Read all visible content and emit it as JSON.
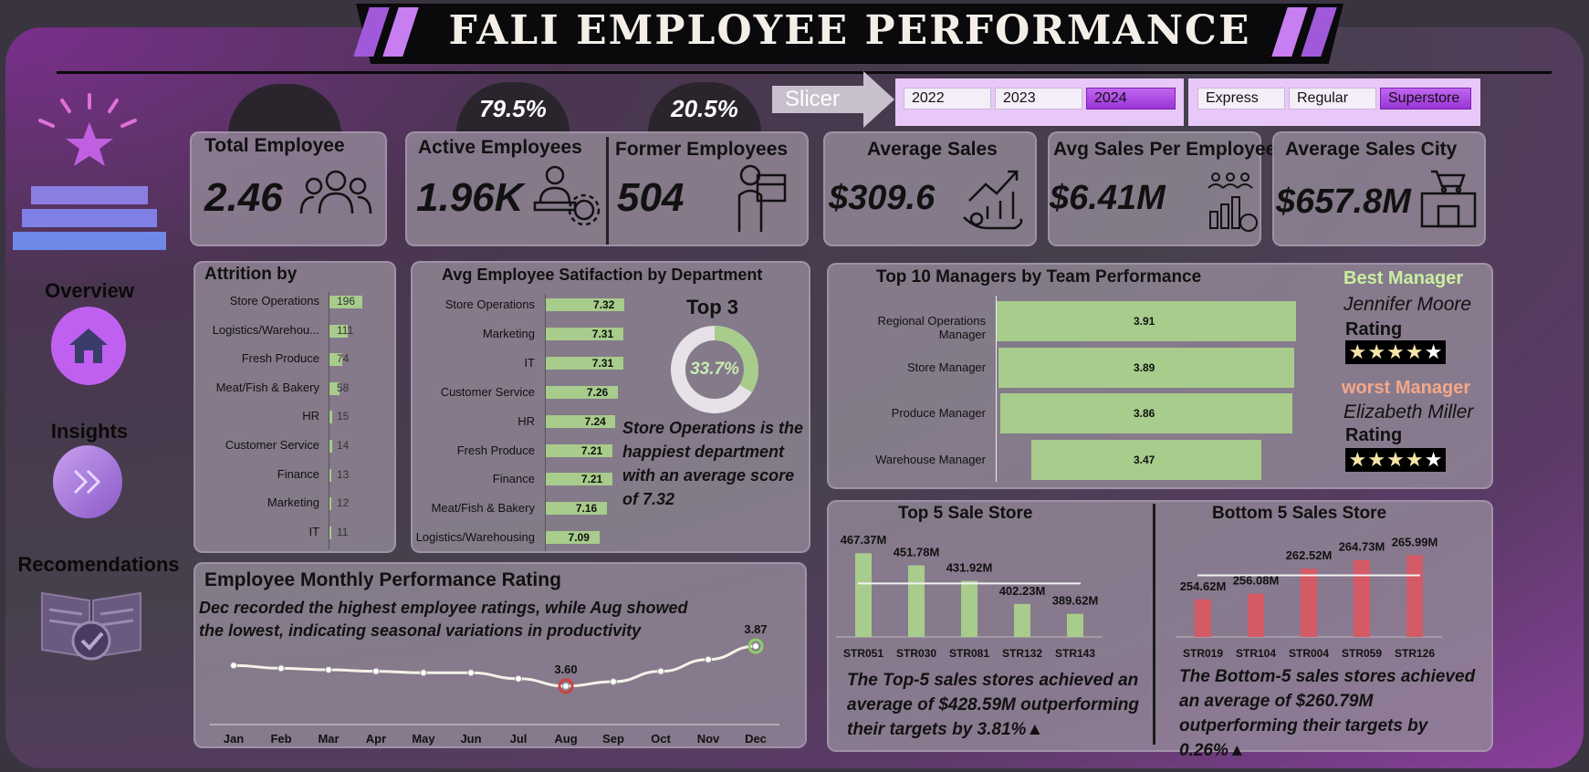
{
  "title": "FALI EMPLOYEE PERFORMANCE",
  "nav": {
    "overview": "Overview",
    "insights": "Insights",
    "recommendations": "Recomendations"
  },
  "slicer": {
    "label": "Slicer",
    "years": [
      {
        "label": "2022",
        "selected": false
      },
      {
        "label": "2023",
        "selected": false
      },
      {
        "label": "2024",
        "selected": true
      }
    ],
    "store_types": [
      {
        "label": "Express",
        "selected": false
      },
      {
        "label": "Regular",
        "selected": false
      },
      {
        "label": "Superstore",
        "selected": true
      }
    ]
  },
  "kpis": {
    "total_employee": {
      "label": "Total Employee",
      "value": "2.46"
    },
    "active_employees": {
      "label": "Active Employees",
      "value": "1.96K",
      "pct": "79.5%"
    },
    "former_employees": {
      "label": "Former Employees",
      "value": "504",
      "pct": "20.5%"
    },
    "average_sales": {
      "label": "Average Sales",
      "value": "$309.6"
    },
    "avg_sales_per_employee": {
      "label": "Avg Sales Per Employee",
      "value": "$6.41M"
    },
    "average_sales_city": {
      "label": "Average Sales City",
      "value": "$657.8M"
    }
  },
  "attrition": {
    "title": "Attrition by",
    "items": [
      {
        "label": "Store Operations",
        "value": "196"
      },
      {
        "label": "Logistics/Warehou...",
        "value": "111"
      },
      {
        "label": "Fresh Produce",
        "value": "74"
      },
      {
        "label": "Meat/Fish & Bakery",
        "value": "58"
      },
      {
        "label": "HR",
        "value": "15"
      },
      {
        "label": "Customer Service",
        "value": "14"
      },
      {
        "label": "Finance",
        "value": "13"
      },
      {
        "label": "Marketing",
        "value": "12"
      },
      {
        "label": "IT",
        "value": "11"
      }
    ]
  },
  "satisfaction": {
    "title": "Avg Employee Satifaction by Department",
    "items": [
      {
        "label": "Store Operations",
        "value": "7.32"
      },
      {
        "label": "Marketing",
        "value": "7.31"
      },
      {
        "label": "IT",
        "value": "7.31"
      },
      {
        "label": "Customer Service",
        "value": "7.26"
      },
      {
        "label": "HR",
        "value": "7.24"
      },
      {
        "label": "Fresh Produce",
        "value": "7.21"
      },
      {
        "label": "Finance",
        "value": "7.21"
      },
      {
        "label": "Meat/Fish & Bakery",
        "value": "7.16"
      },
      {
        "label": "Logistics/Warehousing",
        "value": "7.09"
      }
    ],
    "top3_label": "Top 3",
    "donut_value": "33.7%",
    "donut_fraction": 0.337,
    "note": "Store Operations is the happiest department with an average score of 7.32"
  },
  "managers": {
    "title": "Top 10 Managers by Team Performance",
    "items": [
      {
        "label": "Regional Operations Manager",
        "value": "3.91"
      },
      {
        "label": "Store Manager",
        "value": "3.89"
      },
      {
        "label": "Produce Manager",
        "value": "3.86"
      },
      {
        "label": "Warehouse Manager",
        "value": "3.47"
      }
    ],
    "best_label": "Best Manager",
    "best_name": "Jennifer Moore",
    "best_rating_label": "Rating",
    "worst_label": "worst Manager",
    "worst_name": "Elizabeth Miller",
    "worst_rating_label": "Rating",
    "best_stars": 5,
    "worst_stars": 5
  },
  "monthly": {
    "title": "Employee Monthly Performance Rating",
    "note": "Dec recorded the highest employee ratings, while Aug showed the lowest, indicating seasonal variations in productivity",
    "months": [
      "Jan",
      "Feb",
      "Mar",
      "Apr",
      "May",
      "Jun",
      "Jul",
      "Aug",
      "Sep",
      "Oct",
      "Nov",
      "Dec"
    ],
    "values": [
      3.74,
      3.72,
      3.71,
      3.7,
      3.69,
      3.69,
      3.65,
      3.6,
      3.63,
      3.7,
      3.78,
      3.87
    ],
    "min_label": "3.60",
    "max_label": "3.87"
  },
  "top5": {
    "title": "Top 5 Sale Store",
    "stores": [
      "STR051",
      "STR030",
      "STR081",
      "STR132",
      "STR143"
    ],
    "values": [
      467.37,
      451.78,
      431.92,
      402.23,
      389.62
    ],
    "labels": [
      "467.37M",
      "451.78M",
      "431.92M",
      "402.23M",
      "389.62M"
    ],
    "average": 428.59,
    "note": "The Top-5 sales stores achieved an average of $428.59M outperforming their targets by 3.81%▲"
  },
  "bottom5": {
    "title": "Bottom 5 Sales Store",
    "stores": [
      "STR019",
      "STR104",
      "STR004",
      "STR059",
      "STR126"
    ],
    "values": [
      254.62,
      256.08,
      262.52,
      264.73,
      265.99
    ],
    "labels": [
      "254.62M",
      "256.08M",
      "262.52M",
      "264.73M",
      "265.99M"
    ],
    "average": 260.79,
    "note": "The Bottom-5 sales stores achieved an average of $260.79M outperforming their targets by 0.26%▲"
  },
  "chart_data": [
    {
      "type": "bar",
      "title": "Attrition by",
      "categories": [
        "Store Operations",
        "Logistics/Warehou...",
        "Fresh Produce",
        "Meat/Fish & Bakery",
        "HR",
        "Customer Service",
        "Finance",
        "Marketing",
        "IT"
      ],
      "values": [
        196,
        111,
        74,
        58,
        15,
        14,
        13,
        12,
        11
      ]
    },
    {
      "type": "bar",
      "title": "Avg Employee Satifaction by Department",
      "categories": [
        "Store Operations",
        "Marketing",
        "IT",
        "Customer Service",
        "HR",
        "Fresh Produce",
        "Finance",
        "Meat/Fish & Bakery",
        "Logistics/Warehousing"
      ],
      "values": [
        7.32,
        7.31,
        7.31,
        7.26,
        7.24,
        7.21,
        7.21,
        7.16,
        7.09
      ]
    },
    {
      "type": "pie",
      "title": "Top 3",
      "values": [
        33.7,
        66.3
      ]
    },
    {
      "type": "bar",
      "title": "Top 10 Managers by Team Performance",
      "categories": [
        "Regional Operations Manager",
        "Store Manager",
        "Produce Manager",
        "Warehouse Manager"
      ],
      "values": [
        3.91,
        3.89,
        3.86,
        3.47
      ]
    },
    {
      "type": "line",
      "title": "Employee Monthly Performance Rating",
      "x": [
        "Jan",
        "Feb",
        "Mar",
        "Apr",
        "May",
        "Jun",
        "Jul",
        "Aug",
        "Sep",
        "Oct",
        "Nov",
        "Dec"
      ],
      "values": [
        3.74,
        3.72,
        3.71,
        3.7,
        3.69,
        3.69,
        3.65,
        3.6,
        3.63,
        3.7,
        3.78,
        3.87
      ]
    },
    {
      "type": "bar",
      "title": "Top 5 Sale Store",
      "categories": [
        "STR051",
        "STR030",
        "STR081",
        "STR132",
        "STR143"
      ],
      "values": [
        467.37,
        451.78,
        431.92,
        402.23,
        389.62
      ]
    },
    {
      "type": "bar",
      "title": "Bottom 5 Sales Store",
      "categories": [
        "STR019",
        "STR104",
        "STR004",
        "STR059",
        "STR126"
      ],
      "values": [
        254.62,
        256.08,
        262.52,
        264.73,
        265.99
      ]
    }
  ],
  "colors": {
    "bar_green": "#a8cc8c",
    "bar_red": "#d45a66",
    "accent_purple": "#a05ad9",
    "best_manager": "#c8f0a0",
    "worst_manager": "#f4a888"
  }
}
